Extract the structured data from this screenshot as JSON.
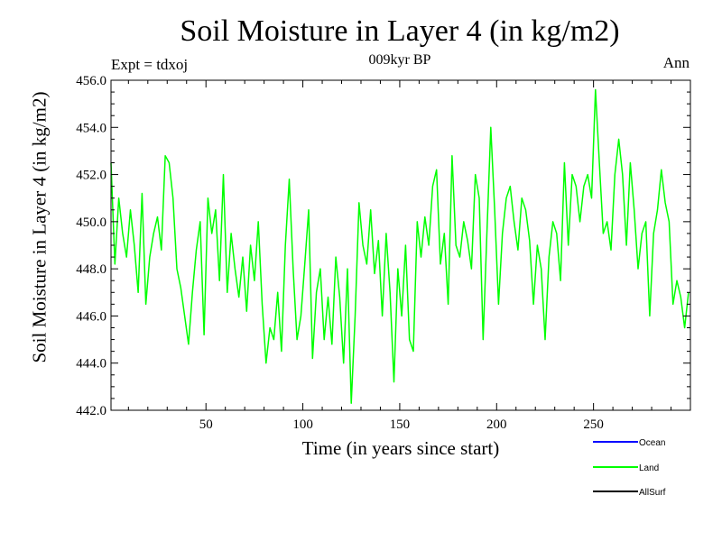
{
  "chart_data": {
    "type": "line",
    "title": "Soil Moisture in Layer 4 (in kg/m2)",
    "subtitle": "009kyr BP",
    "experiment": "Expt = tdxoj",
    "period": "Ann",
    "xlabel": "Time (in years since start)",
    "ylabel": "Soil Moisture in Layer 4 (in kg/m2)",
    "xlim": [
      1,
      300
    ],
    "ylim": [
      442.0,
      456.0
    ],
    "x_ticks": [
      50,
      100,
      150,
      200,
      250
    ],
    "x_tick_labels": [
      "50",
      "100",
      "150",
      "200",
      "250"
    ],
    "y_ticks": [
      442,
      444,
      446,
      448,
      450,
      452,
      454,
      456
    ],
    "y_tick_labels": [
      "442.0",
      "444.0",
      "446.0",
      "448.0",
      "450.0",
      "452.0",
      "454.0",
      "456.0"
    ],
    "legend": [
      {
        "name": "Ocean",
        "color": "#0000ff"
      },
      {
        "name": "Land",
        "color": "#00ff00"
      },
      {
        "name": "AllSurf",
        "color": "#000000"
      }
    ],
    "series": [
      {
        "name": "Land",
        "color": "#00ff00",
        "x": [
          1,
          3,
          5,
          7,
          9,
          11,
          13,
          15,
          17,
          19,
          21,
          23,
          25,
          27,
          29,
          31,
          33,
          35,
          37,
          39,
          41,
          43,
          45,
          47,
          49,
          51,
          53,
          55,
          57,
          59,
          61,
          63,
          65,
          67,
          69,
          71,
          73,
          75,
          77,
          79,
          81,
          83,
          85,
          87,
          89,
          91,
          93,
          95,
          97,
          99,
          101,
          103,
          105,
          107,
          109,
          111,
          113,
          115,
          117,
          119,
          121,
          123,
          125,
          127,
          129,
          131,
          133,
          135,
          137,
          139,
          141,
          143,
          145,
          147,
          149,
          151,
          153,
          155,
          157,
          159,
          161,
          163,
          165,
          167,
          169,
          171,
          173,
          175,
          177,
          179,
          181,
          183,
          185,
          187,
          189,
          191,
          193,
          195,
          197,
          199,
          201,
          203,
          205,
          207,
          209,
          211,
          213,
          215,
          217,
          219,
          221,
          223,
          225,
          227,
          229,
          231,
          233,
          235,
          237,
          239,
          241,
          243,
          245,
          247,
          249,
          251,
          253,
          255,
          257,
          259,
          261,
          263,
          265,
          267,
          269,
          271,
          273,
          275,
          277,
          279,
          281,
          283,
          285,
          287,
          289,
          291,
          293,
          295,
          297,
          299
        ],
        "values": [
          452.5,
          448.2,
          451.0,
          449.5,
          448.5,
          450.5,
          449.0,
          447.0,
          451.2,
          446.5,
          448.5,
          449.5,
          450.2,
          448.8,
          452.8,
          452.5,
          451.0,
          448.0,
          447.2,
          446.0,
          444.8,
          447.0,
          448.8,
          450.0,
          445.2,
          451.0,
          449.5,
          450.5,
          447.5,
          452.0,
          447.0,
          449.5,
          448.0,
          446.8,
          448.5,
          446.2,
          449.0,
          447.5,
          450.0,
          446.5,
          444.0,
          445.5,
          445.0,
          447.0,
          444.5,
          449.0,
          451.8,
          448.0,
          445.0,
          446.0,
          448.2,
          450.5,
          444.2,
          447.0,
          448.0,
          445.0,
          446.8,
          444.8,
          448.5,
          446.8,
          444.0,
          448.0,
          442.3,
          446.0,
          450.8,
          449.0,
          448.2,
          450.5,
          447.8,
          449.2,
          446.0,
          449.5,
          447.0,
          443.2,
          448.0,
          446.0,
          449.0,
          445.0,
          444.5,
          450.0,
          448.5,
          450.2,
          449.0,
          451.5,
          452.2,
          448.2,
          449.5,
          446.5,
          452.8,
          449.0,
          448.5,
          450.0,
          449.2,
          448.0,
          452.0,
          451.0,
          445.0,
          449.5,
          454.0,
          450.5,
          446.5,
          449.5,
          451.0,
          451.5,
          450.0,
          448.8,
          451.0,
          450.5,
          449.2,
          446.5,
          449.0,
          448.0,
          445.0,
          448.5,
          450.0,
          449.5,
          447.5,
          452.5,
          449.0,
          452.0,
          451.5,
          450.0,
          451.5,
          452.0,
          451.0,
          455.6,
          452.5,
          449.5,
          450.0,
          448.8,
          452.0,
          453.5,
          452.0,
          449.0,
          452.5,
          450.5,
          448.0,
          449.5,
          450.0,
          446.0,
          449.5,
          450.5,
          452.2,
          450.8,
          450.0,
          446.5,
          447.5,
          446.8,
          445.5,
          447.0
        ]
      }
    ]
  }
}
